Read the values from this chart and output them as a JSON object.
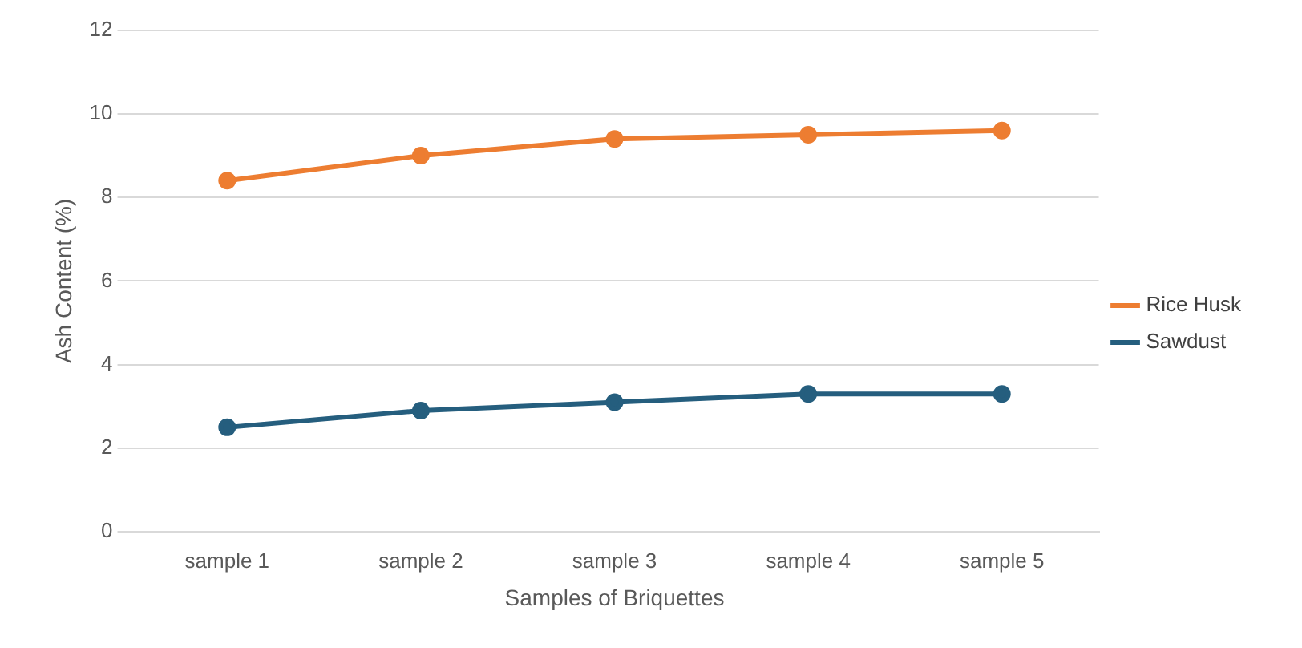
{
  "chart_data": {
    "type": "line",
    "xlabel": "Samples of Briquettes",
    "ylabel": "Ash Content (%)",
    "categories": [
      "sample 1",
      "sample 2",
      "sample 3",
      "sample 4",
      "sample 5"
    ],
    "series": [
      {
        "name": "Rice Husk",
        "color": "#ed7d31",
        "values": [
          8.4,
          9.0,
          9.4,
          9.5,
          9.6
        ]
      },
      {
        "name": "Sawdust",
        "color": "#255e7e",
        "values": [
          2.5,
          2.9,
          3.1,
          3.3,
          3.3
        ]
      }
    ],
    "ylim": [
      0,
      12
    ],
    "yticks": [
      0,
      2,
      4,
      6,
      8,
      10,
      12
    ],
    "grid": "y",
    "legend": "right",
    "marker": "circle",
    "line_style": "solid"
  }
}
